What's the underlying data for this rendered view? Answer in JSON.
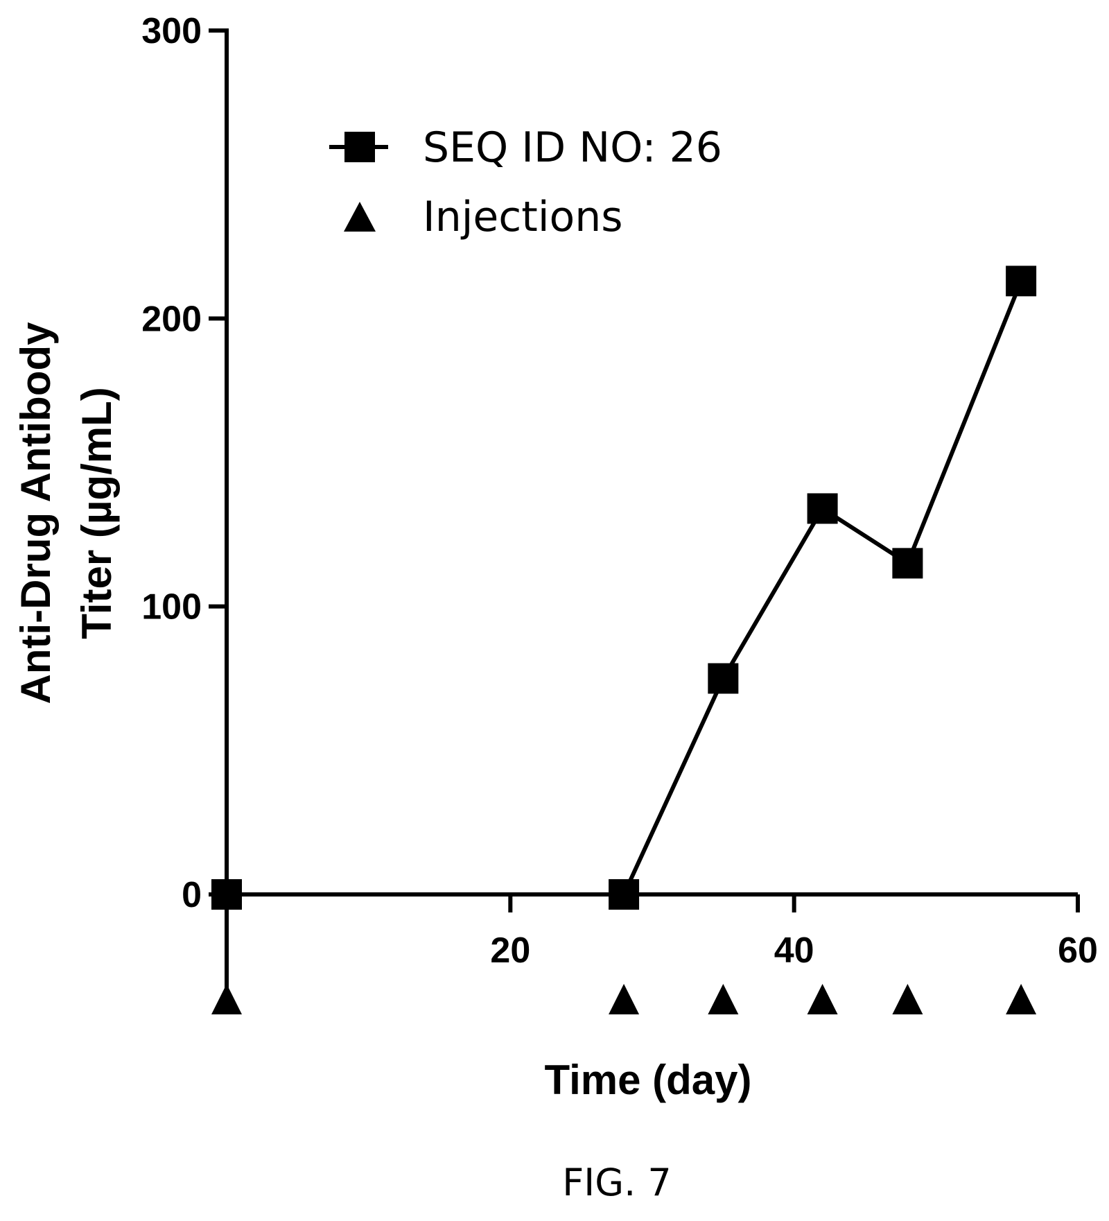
{
  "chart_data": {
    "type": "line",
    "ylabel_line1": "Anti-Drug Antibody",
    "ylabel_line2": "Titer (µg/mL)",
    "xlabel": "Time (day)",
    "xlim": [
      0,
      60
    ],
    "ylim": [
      0,
      300
    ],
    "x_ticks": [
      20,
      40,
      60
    ],
    "y_ticks": [
      0,
      100,
      200,
      300
    ],
    "series": [
      {
        "name": "SEQ ID NO: 26",
        "marker": "square",
        "points": [
          {
            "x": 0,
            "y": 0
          },
          {
            "x": 28,
            "y": 0
          },
          {
            "x": 35,
            "y": 75
          },
          {
            "x": 42,
            "y": 134
          },
          {
            "x": 48,
            "y": 115
          },
          {
            "x": 56,
            "y": 213
          }
        ]
      }
    ],
    "injections": {
      "name": "Injections",
      "marker": "triangle",
      "days": [
        0,
        28,
        35,
        42,
        48,
        56
      ]
    },
    "legend_position": "top-left",
    "grid": false
  },
  "caption": "FIG. 7"
}
